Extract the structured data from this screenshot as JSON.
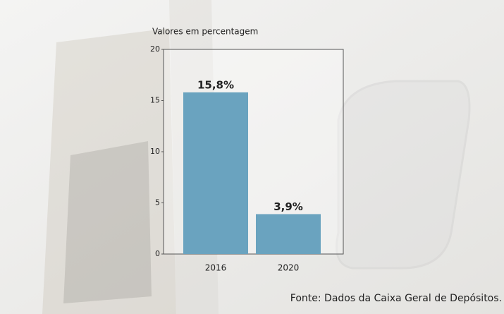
{
  "chart_data": {
    "type": "bar",
    "title": "Valores em percentagem",
    "categories": [
      "2016",
      "2020"
    ],
    "values": [
      15.8,
      3.9
    ],
    "value_labels": [
      "15,8%",
      "3,9%"
    ],
    "color": "#6aa3bf",
    "ylim": [
      0,
      20
    ],
    "yticks": [
      0,
      5,
      10,
      15,
      20
    ],
    "source": "Fonte: Dados da Caixa Geral de Depósitos."
  }
}
